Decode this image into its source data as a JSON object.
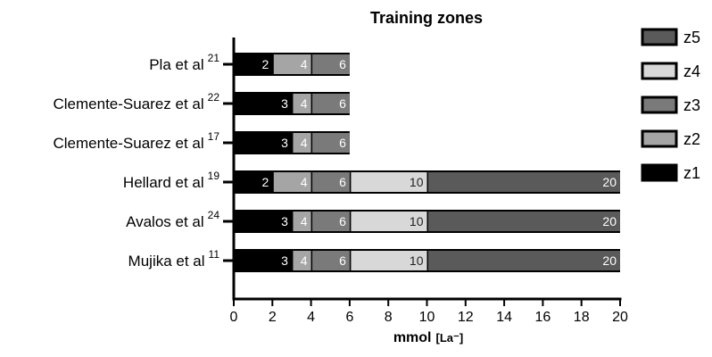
{
  "chart_data": {
    "type": "bar",
    "orientation": "horizontal",
    "stacked": true,
    "title": "Training zones",
    "xlabel": "mmol",
    "xlabel_unit": "[La⁻]",
    "xlim": [
      0,
      20
    ],
    "xticks": [
      "0",
      "2",
      "4",
      "6",
      "8",
      "10",
      "12",
      "14",
      "16",
      "18",
      "20"
    ],
    "grid": false,
    "legend_position": "right",
    "legend": [
      {
        "name": "z5",
        "color": "#5a5a5a"
      },
      {
        "name": "z4",
        "color": "#d8d8d8"
      },
      {
        "name": "z3",
        "color": "#7a7a7a"
      },
      {
        "name": "z2",
        "color": "#a5a5a5"
      },
      {
        "name": "z1",
        "color": "#000000"
      }
    ],
    "bars": [
      {
        "label": "Pla et al",
        "ref": "21",
        "thresholds": [
          2,
          4,
          6
        ],
        "labels": [
          "2",
          "4",
          "6"
        ]
      },
      {
        "label": "Clemente-Suarez et al",
        "ref": "22",
        "thresholds": [
          3,
          4,
          6
        ],
        "labels": [
          "3",
          "4",
          "6"
        ]
      },
      {
        "label": "Clemente-Suarez et al",
        "ref": "17",
        "thresholds": [
          3,
          4,
          6
        ],
        "labels": [
          "3",
          "4",
          "6"
        ]
      },
      {
        "label": "Hellard et al",
        "ref": "19",
        "thresholds": [
          2,
          4,
          6,
          10,
          20
        ],
        "labels": [
          "2",
          "4",
          "6",
          "10",
          "20"
        ]
      },
      {
        "label": "Avalos et al",
        "ref": "24",
        "thresholds": [
          3,
          4,
          6,
          10,
          20
        ],
        "labels": [
          "3",
          "4",
          "6",
          "10",
          "20"
        ]
      },
      {
        "label": "Mujika et al",
        "ref": "11",
        "thresholds": [
          3,
          4,
          6,
          10,
          20
        ],
        "labels": [
          "3",
          "4",
          "6",
          "10",
          "20"
        ]
      }
    ]
  }
}
